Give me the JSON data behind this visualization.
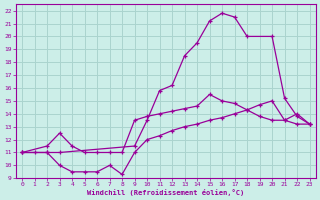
{
  "xlabel": "Windchill (Refroidissement éolien,°C)",
  "bg_color": "#cceee8",
  "grid_color": "#aad4ce",
  "line_color": "#990099",
  "xlim": [
    -0.5,
    23.5
  ],
  "ylim": [
    9,
    22.5
  ],
  "xticks": [
    0,
    1,
    2,
    3,
    4,
    5,
    6,
    7,
    8,
    9,
    10,
    11,
    12,
    13,
    14,
    15,
    16,
    17,
    18,
    19,
    20,
    21,
    22,
    23
  ],
  "yticks": [
    9,
    10,
    11,
    12,
    13,
    14,
    15,
    16,
    17,
    18,
    19,
    20,
    21,
    22
  ],
  "line1_x": [
    0,
    1,
    2,
    3,
    4,
    5,
    6,
    7,
    8,
    9,
    10,
    11,
    12,
    13,
    14,
    15,
    16,
    17,
    18,
    19,
    20,
    21,
    22,
    23
  ],
  "line1_y": [
    11,
    11,
    11,
    10,
    9.5,
    9.5,
    9.5,
    10,
    9.3,
    11,
    12,
    12.3,
    12.7,
    13,
    13.2,
    13.5,
    13.7,
    14,
    14.3,
    14.7,
    15,
    13.5,
    13.2,
    13.2
  ],
  "line2_x": [
    0,
    2,
    3,
    9,
    10,
    11,
    12,
    13,
    14,
    15,
    16,
    17,
    18,
    20,
    21,
    22,
    23
  ],
  "line2_y": [
    11,
    11,
    11,
    11.5,
    13.5,
    15.8,
    16.2,
    18.5,
    19.5,
    21.2,
    21.8,
    21.5,
    20,
    20,
    15.2,
    13.8,
    13.2
  ],
  "line3_x": [
    0,
    2,
    3,
    4,
    5,
    6,
    7,
    8,
    9,
    10,
    11,
    12,
    13,
    14,
    15,
    16,
    17,
    18,
    19,
    20,
    21,
    22,
    23
  ],
  "line3_y": [
    11,
    11.5,
    12.5,
    11.5,
    11,
    11,
    11,
    11,
    13.5,
    13.8,
    14,
    14.2,
    14.4,
    14.6,
    15.5,
    15,
    14.8,
    14.3,
    13.8,
    13.5,
    13.5,
    14,
    13.2
  ]
}
